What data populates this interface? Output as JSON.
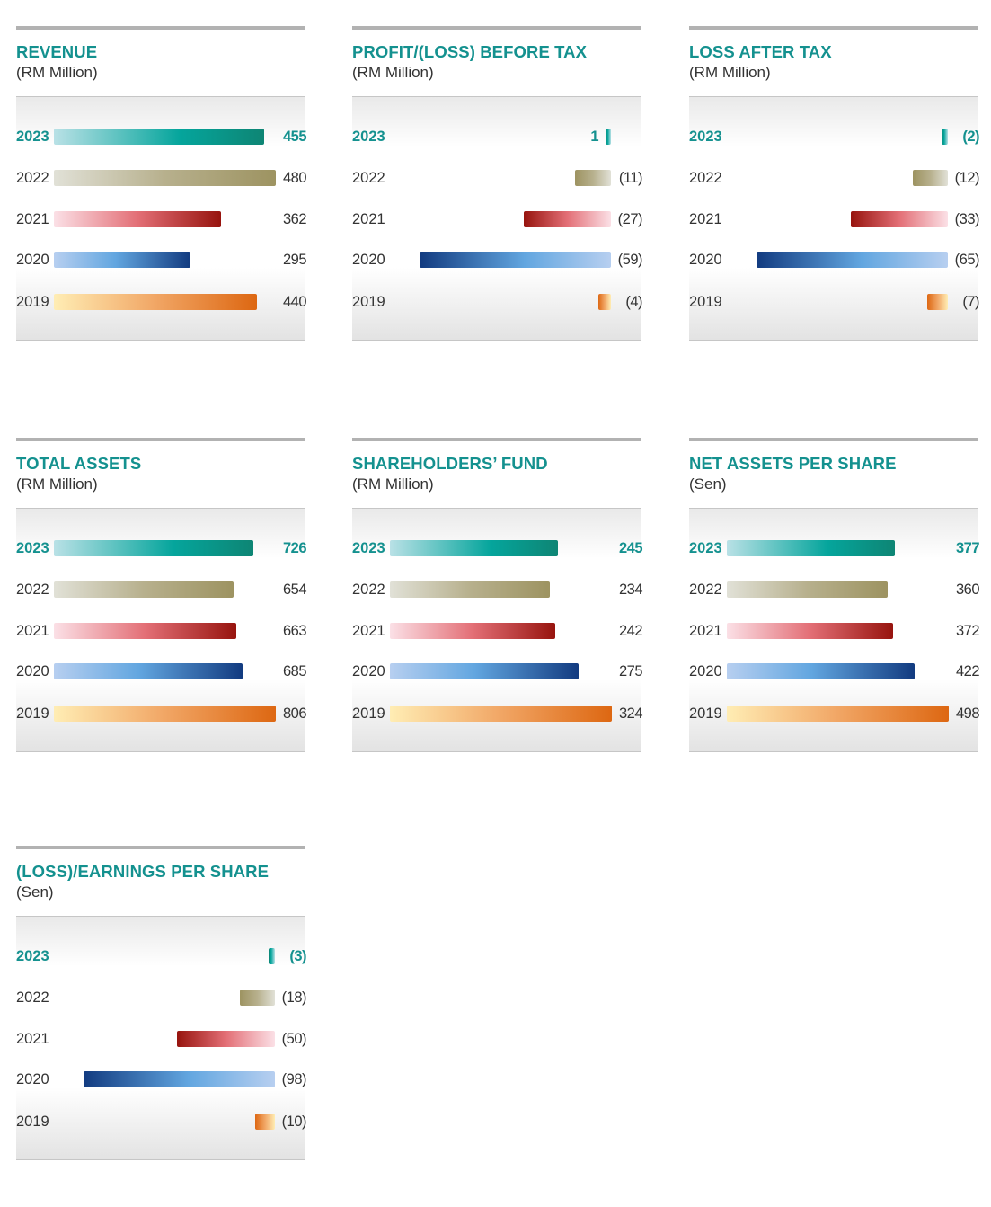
{
  "colors": {
    "title": "#14918f",
    "series": [
      "teal",
      "olive",
      "red",
      "blue",
      "orange"
    ]
  },
  "chart_data": [
    {
      "type": "bar",
      "title": "REVENUE",
      "subtitle": "(RM Million)",
      "categories": [
        "2023",
        "2022",
        "2021",
        "2020",
        "2019"
      ],
      "values": [
        455,
        480,
        362,
        295,
        440
      ],
      "labels": [
        "455",
        "480",
        "362",
        "295",
        "440"
      ],
      "highlight": "2023"
    },
    {
      "type": "bar",
      "title": "PROFIT/(LOSS) BEFORE TAX",
      "subtitle": "(RM Million)",
      "categories": [
        "2023",
        "2022",
        "2021",
        "2020",
        "2019"
      ],
      "values": [
        1,
        -11,
        -27,
        -59,
        -4
      ],
      "labels": [
        "1",
        "(11)",
        "(27)",
        "(59)",
        "(4)"
      ],
      "highlight": "2023"
    },
    {
      "type": "bar",
      "title": "LOSS AFTER TAX",
      "subtitle": "(RM Million)",
      "categories": [
        "2023",
        "2022",
        "2021",
        "2020",
        "2019"
      ],
      "values": [
        -2,
        -12,
        -33,
        -65,
        -7
      ],
      "labels": [
        "(2)",
        "(12)",
        "(33)",
        "(65)",
        "(7)"
      ],
      "highlight": "2023"
    },
    {
      "type": "bar",
      "title": "TOTAL ASSETS",
      "subtitle": "(RM Million)",
      "categories": [
        "2023",
        "2022",
        "2021",
        "2020",
        "2019"
      ],
      "values": [
        726,
        654,
        663,
        685,
        806
      ],
      "labels": [
        "726",
        "654",
        "663",
        "685",
        "806"
      ],
      "highlight": "2023"
    },
    {
      "type": "bar",
      "title": "SHAREHOLDERS’ FUND",
      "subtitle": "(RM Million)",
      "categories": [
        "2023",
        "2022",
        "2021",
        "2020",
        "2019"
      ],
      "values": [
        245,
        234,
        242,
        275,
        324
      ],
      "labels": [
        "245",
        "234",
        "242",
        "275",
        "324"
      ],
      "highlight": "2023"
    },
    {
      "type": "bar",
      "title": "NET ASSETS PER SHARE",
      "subtitle": "(Sen)",
      "categories": [
        "2023",
        "2022",
        "2021",
        "2020",
        "2019"
      ],
      "values": [
        377,
        360,
        372,
        422,
        498
      ],
      "labels": [
        "377",
        "360",
        "372",
        "422",
        "498"
      ],
      "highlight": "2023"
    },
    {
      "type": "bar",
      "title": "(LOSS)/EARNINGS PER SHARE",
      "subtitle": "(Sen)",
      "categories": [
        "2023",
        "2022",
        "2021",
        "2020",
        "2019"
      ],
      "values": [
        -3,
        -18,
        -50,
        -98,
        -10
      ],
      "labels": [
        "(3)",
        "(18)",
        "(50)",
        "(98)",
        "(10)"
      ],
      "highlight": "2023"
    }
  ]
}
